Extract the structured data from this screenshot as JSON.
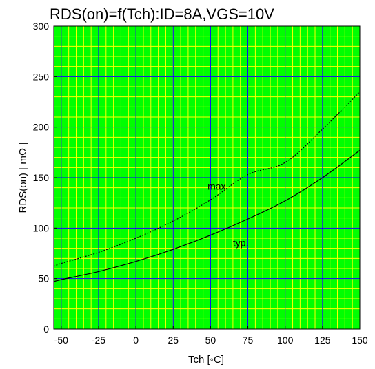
{
  "chart_data": {
    "type": "line",
    "title": "RDS(on)=f(Tch):ID=8A,VGS=10V",
    "xlabel": "Tch [◦C]",
    "ylabel": "RDS(on) [ mΩ ]",
    "xlim": [
      -55,
      150
    ],
    "ylim": [
      0,
      300
    ],
    "x_ticks": [
      -50,
      -25,
      0,
      25,
      50,
      75,
      100,
      125,
      150
    ],
    "y_ticks": [
      0,
      50,
      100,
      150,
      200,
      250,
      300
    ],
    "grid": true,
    "colors": {
      "background": "#00ff00",
      "minor_grid": "#ffff00",
      "major_grid": "#0000ff",
      "series_line": "#000000"
    },
    "series": [
      {
        "name": "max.",
        "style": "dotted",
        "x": [
          -55,
          -50,
          -25,
          0,
          25,
          50,
          75,
          100,
          125,
          150
        ],
        "y": [
          62,
          65,
          76,
          90,
          107,
          128,
          153,
          165,
          198,
          235
        ]
      },
      {
        "name": "typ.",
        "style": "solid",
        "x": [
          -55,
          -50,
          -25,
          0,
          25,
          50,
          75,
          100,
          125,
          150
        ],
        "y": [
          47,
          49,
          57,
          67,
          79,
          93,
          109,
          127,
          150,
          177
        ]
      }
    ],
    "annotations": [
      {
        "text": "max.",
        "x": 48,
        "y": 138
      },
      {
        "text": "typ.",
        "x": 65,
        "y": 82
      }
    ]
  }
}
